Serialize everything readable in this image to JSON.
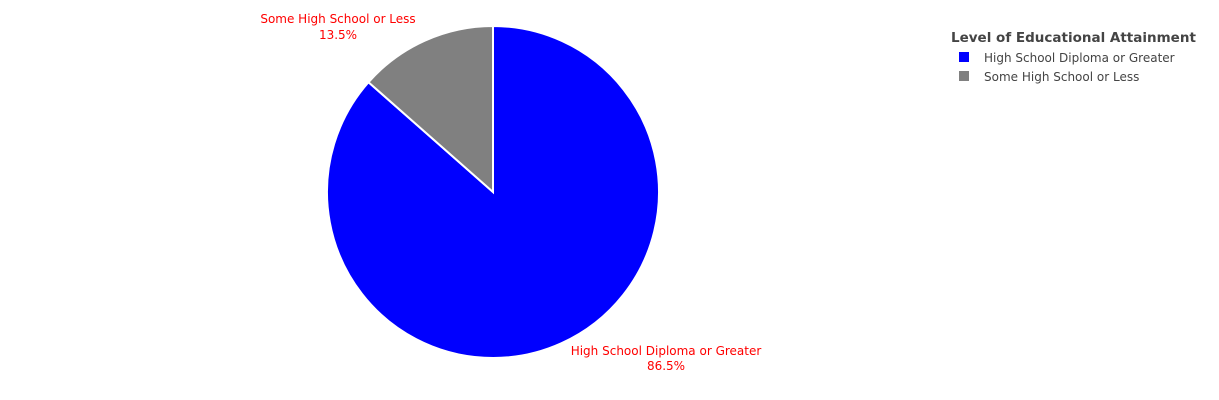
{
  "chart_data": {
    "type": "pie",
    "title": "",
    "legend_title": "Level of Educational Attainment",
    "legend_placement": "top-right",
    "label_color": "#ff0000",
    "slice_border_color": "#ffffff",
    "slices": [
      {
        "label": "High School Diploma or Greater",
        "value": 86.5,
        "percent_text": "86.5%",
        "color": "#0000ff"
      },
      {
        "label": "Some High School or Less",
        "value": 13.5,
        "percent_text": "13.5%",
        "color": "#808080"
      }
    ]
  }
}
